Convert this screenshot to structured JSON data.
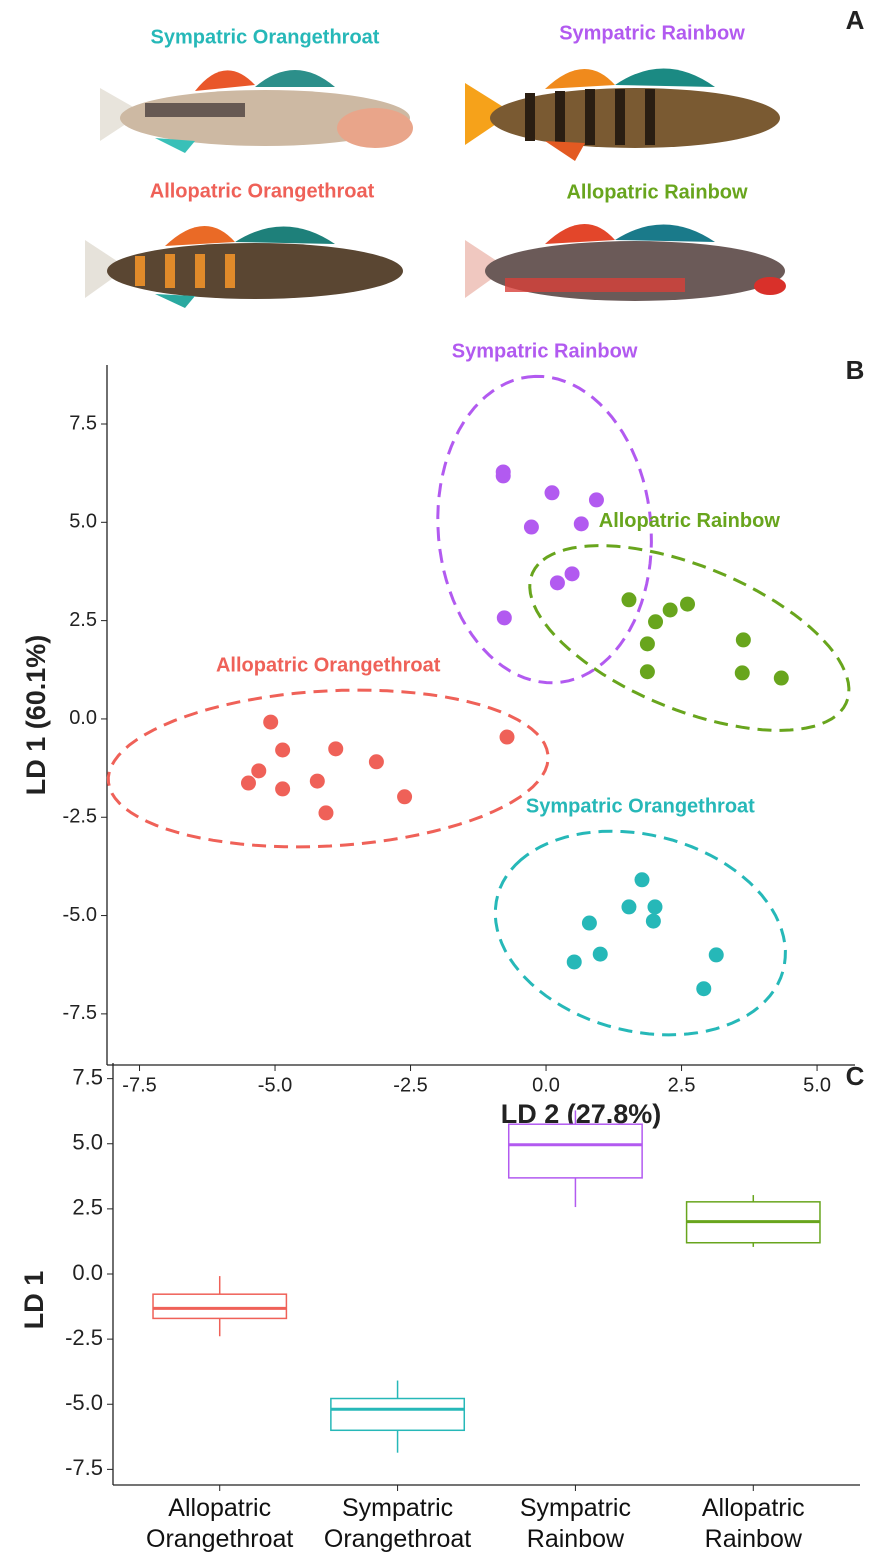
{
  "panel_a": {
    "panel": "A",
    "fish": [
      {
        "label": "Sympatric Orangethroat",
        "color": "#26b8b8"
      },
      {
        "label": "Sympatric Rainbow",
        "color": "#b25af0"
      },
      {
        "label": "Allopatric Orangethroat",
        "color": "#ef6158"
      },
      {
        "label": "Allopatric Rainbow",
        "color": "#68a51d"
      }
    ]
  },
  "chart_data": [
    {
      "type": "scatter",
      "panel": "B",
      "x_label": "LD 2 (27.8%)",
      "y_label": "LD 1 (60.1%)",
      "xlim": [
        -8.1,
        5.7
      ],
      "ylim": [
        -8.8,
        9.0
      ],
      "xticks": [
        -7.5,
        {
          "value": -5.0,
          "label": "-5.0"
        },
        -2.5,
        {
          "value": 0,
          "label": "0.0"
        },
        2.5,
        {
          "value": 5.0,
          "label": "5.0"
        }
      ],
      "yticks": [
        7.5,
        {
          "value": 5.0,
          "label": "5.0"
        },
        2.5,
        {
          "value": 0,
          "label": "0.0"
        },
        -2.5,
        {
          "value": -5.0,
          "label": "-5.0"
        },
        -7.5
      ],
      "ellipses": true,
      "series": [
        {
          "name": "Sympatric Rainbow",
          "color": "#b25af0",
          "x": [
            -0.79,
            -0.79,
            0.11,
            0.93,
            -0.27,
            0.65,
            0.48,
            0.21,
            -0.77
          ],
          "values": [
            6.28,
            6.18,
            5.75,
            5.57,
            4.88,
            4.96,
            3.69,
            3.46,
            2.57
          ]
        },
        {
          "name": "Allopatric Rainbow",
          "color": "#68a51d",
          "x": [
            1.53,
            2.02,
            2.29,
            2.61,
            1.87,
            1.87,
            3.64,
            3.62,
            4.34
          ],
          "values": [
            3.03,
            2.47,
            2.77,
            2.92,
            1.91,
            1.2,
            2.01,
            1.17,
            1.04
          ]
        },
        {
          "name": "Allopatric Orangethroat",
          "color": "#ef6158",
          "x": [
            -5.08,
            -4.86,
            -3.88,
            -5.3,
            -5.49,
            -4.86,
            -4.22,
            -3.13,
            -4.06,
            -2.61,
            -0.72
          ],
          "values": [
            -0.08,
            -0.79,
            -0.76,
            -1.32,
            -1.63,
            -1.78,
            -1.58,
            -1.09,
            -2.39,
            -1.98,
            -0.46
          ]
        },
        {
          "name": "Sympatric Orangethroat",
          "color": "#26b8b8",
          "x": [
            1.77,
            1.53,
            2.01,
            1.98,
            0.8,
            0.52,
            1.0,
            3.14,
            2.91
          ],
          "values": [
            -4.09,
            -4.78,
            -4.78,
            -5.14,
            -5.19,
            -6.18,
            -5.98,
            -6.0,
            -6.86
          ]
        }
      ]
    },
    {
      "type": "box",
      "panel": "C",
      "y_label": "LD 1",
      "ylim": [
        -8.1,
        8.1
      ],
      "yticks": [
        7.5,
        {
          "value": 5.0,
          "label": "5.0"
        },
        2.5,
        {
          "value": 0,
          "label": "0.0"
        },
        -2.5,
        {
          "value": -5.0,
          "label": "-5.0"
        },
        -7.5
      ],
      "categories": [
        "Allopatric Orangethroat",
        "Sympatric Orangethroat",
        "Sympatric Rainbow",
        "Allopatric Rainbow"
      ],
      "colors": [
        "#ef6158",
        "#26b8b8",
        "#b25af0",
        "#68a51d"
      ],
      "boxes": [
        {
          "low": -2.39,
          "q1": -1.705,
          "median": -1.32,
          "q3": -0.775,
          "high": -0.08
        },
        {
          "low": -6.86,
          "q1": -6.0,
          "median": -5.19,
          "q3": -4.78,
          "high": -4.09
        },
        {
          "low": 2.57,
          "q1": 3.69,
          "median": 4.96,
          "q3": 5.75,
          "high": 6.28
        },
        {
          "low": 1.04,
          "q1": 1.2,
          "median": 2.01,
          "q3": 2.77,
          "high": 3.03
        }
      ]
    }
  ]
}
